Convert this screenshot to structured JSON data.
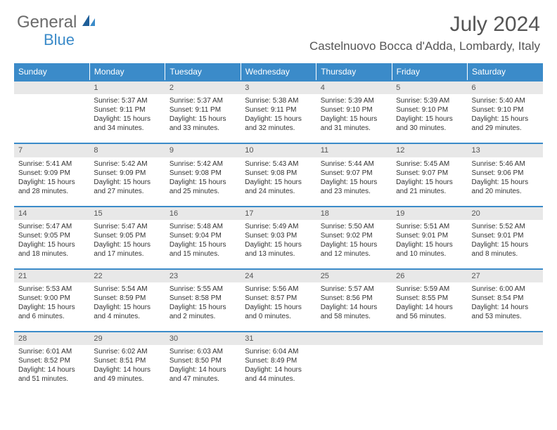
{
  "logo": {
    "text1": "General",
    "text2": "Blue"
  },
  "title": "July 2024",
  "location": "Castelnuovo Bocca d'Adda, Lombardy, Italy",
  "colors": {
    "header_blue": "#3b8bc9",
    "gray_bg": "#e8e8e8",
    "text": "#333333",
    "logo_gray": "#6b6b6b"
  },
  "weekdays": [
    "Sunday",
    "Monday",
    "Tuesday",
    "Wednesday",
    "Thursday",
    "Friday",
    "Saturday"
  ],
  "weeks": [
    {
      "nums": [
        "",
        "1",
        "2",
        "3",
        "4",
        "5",
        "6"
      ],
      "cells": [
        null,
        {
          "sr": "Sunrise: 5:37 AM",
          "ss": "Sunset: 9:11 PM",
          "d1": "Daylight: 15 hours",
          "d2": "and 34 minutes."
        },
        {
          "sr": "Sunrise: 5:37 AM",
          "ss": "Sunset: 9:11 PM",
          "d1": "Daylight: 15 hours",
          "d2": "and 33 minutes."
        },
        {
          "sr": "Sunrise: 5:38 AM",
          "ss": "Sunset: 9:11 PM",
          "d1": "Daylight: 15 hours",
          "d2": "and 32 minutes."
        },
        {
          "sr": "Sunrise: 5:39 AM",
          "ss": "Sunset: 9:10 PM",
          "d1": "Daylight: 15 hours",
          "d2": "and 31 minutes."
        },
        {
          "sr": "Sunrise: 5:39 AM",
          "ss": "Sunset: 9:10 PM",
          "d1": "Daylight: 15 hours",
          "d2": "and 30 minutes."
        },
        {
          "sr": "Sunrise: 5:40 AM",
          "ss": "Sunset: 9:10 PM",
          "d1": "Daylight: 15 hours",
          "d2": "and 29 minutes."
        }
      ]
    },
    {
      "nums": [
        "7",
        "8",
        "9",
        "10",
        "11",
        "12",
        "13"
      ],
      "cells": [
        {
          "sr": "Sunrise: 5:41 AM",
          "ss": "Sunset: 9:09 PM",
          "d1": "Daylight: 15 hours",
          "d2": "and 28 minutes."
        },
        {
          "sr": "Sunrise: 5:42 AM",
          "ss": "Sunset: 9:09 PM",
          "d1": "Daylight: 15 hours",
          "d2": "and 27 minutes."
        },
        {
          "sr": "Sunrise: 5:42 AM",
          "ss": "Sunset: 9:08 PM",
          "d1": "Daylight: 15 hours",
          "d2": "and 25 minutes."
        },
        {
          "sr": "Sunrise: 5:43 AM",
          "ss": "Sunset: 9:08 PM",
          "d1": "Daylight: 15 hours",
          "d2": "and 24 minutes."
        },
        {
          "sr": "Sunrise: 5:44 AM",
          "ss": "Sunset: 9:07 PM",
          "d1": "Daylight: 15 hours",
          "d2": "and 23 minutes."
        },
        {
          "sr": "Sunrise: 5:45 AM",
          "ss": "Sunset: 9:07 PM",
          "d1": "Daylight: 15 hours",
          "d2": "and 21 minutes."
        },
        {
          "sr": "Sunrise: 5:46 AM",
          "ss": "Sunset: 9:06 PM",
          "d1": "Daylight: 15 hours",
          "d2": "and 20 minutes."
        }
      ]
    },
    {
      "nums": [
        "14",
        "15",
        "16",
        "17",
        "18",
        "19",
        "20"
      ],
      "cells": [
        {
          "sr": "Sunrise: 5:47 AM",
          "ss": "Sunset: 9:05 PM",
          "d1": "Daylight: 15 hours",
          "d2": "and 18 minutes."
        },
        {
          "sr": "Sunrise: 5:47 AM",
          "ss": "Sunset: 9:05 PM",
          "d1": "Daylight: 15 hours",
          "d2": "and 17 minutes."
        },
        {
          "sr": "Sunrise: 5:48 AM",
          "ss": "Sunset: 9:04 PM",
          "d1": "Daylight: 15 hours",
          "d2": "and 15 minutes."
        },
        {
          "sr": "Sunrise: 5:49 AM",
          "ss": "Sunset: 9:03 PM",
          "d1": "Daylight: 15 hours",
          "d2": "and 13 minutes."
        },
        {
          "sr": "Sunrise: 5:50 AM",
          "ss": "Sunset: 9:02 PM",
          "d1": "Daylight: 15 hours",
          "d2": "and 12 minutes."
        },
        {
          "sr": "Sunrise: 5:51 AM",
          "ss": "Sunset: 9:01 PM",
          "d1": "Daylight: 15 hours",
          "d2": "and 10 minutes."
        },
        {
          "sr": "Sunrise: 5:52 AM",
          "ss": "Sunset: 9:01 PM",
          "d1": "Daylight: 15 hours",
          "d2": "and 8 minutes."
        }
      ]
    },
    {
      "nums": [
        "21",
        "22",
        "23",
        "24",
        "25",
        "26",
        "27"
      ],
      "cells": [
        {
          "sr": "Sunrise: 5:53 AM",
          "ss": "Sunset: 9:00 PM",
          "d1": "Daylight: 15 hours",
          "d2": "and 6 minutes."
        },
        {
          "sr": "Sunrise: 5:54 AM",
          "ss": "Sunset: 8:59 PM",
          "d1": "Daylight: 15 hours",
          "d2": "and 4 minutes."
        },
        {
          "sr": "Sunrise: 5:55 AM",
          "ss": "Sunset: 8:58 PM",
          "d1": "Daylight: 15 hours",
          "d2": "and 2 minutes."
        },
        {
          "sr": "Sunrise: 5:56 AM",
          "ss": "Sunset: 8:57 PM",
          "d1": "Daylight: 15 hours",
          "d2": "and 0 minutes."
        },
        {
          "sr": "Sunrise: 5:57 AM",
          "ss": "Sunset: 8:56 PM",
          "d1": "Daylight: 14 hours",
          "d2": "and 58 minutes."
        },
        {
          "sr": "Sunrise: 5:59 AM",
          "ss": "Sunset: 8:55 PM",
          "d1": "Daylight: 14 hours",
          "d2": "and 56 minutes."
        },
        {
          "sr": "Sunrise: 6:00 AM",
          "ss": "Sunset: 8:54 PM",
          "d1": "Daylight: 14 hours",
          "d2": "and 53 minutes."
        }
      ]
    },
    {
      "nums": [
        "28",
        "29",
        "30",
        "31",
        "",
        "",
        ""
      ],
      "cells": [
        {
          "sr": "Sunrise: 6:01 AM",
          "ss": "Sunset: 8:52 PM",
          "d1": "Daylight: 14 hours",
          "d2": "and 51 minutes."
        },
        {
          "sr": "Sunrise: 6:02 AM",
          "ss": "Sunset: 8:51 PM",
          "d1": "Daylight: 14 hours",
          "d2": "and 49 minutes."
        },
        {
          "sr": "Sunrise: 6:03 AM",
          "ss": "Sunset: 8:50 PM",
          "d1": "Daylight: 14 hours",
          "d2": "and 47 minutes."
        },
        {
          "sr": "Sunrise: 6:04 AM",
          "ss": "Sunset: 8:49 PM",
          "d1": "Daylight: 14 hours",
          "d2": "and 44 minutes."
        },
        null,
        null,
        null
      ]
    }
  ]
}
